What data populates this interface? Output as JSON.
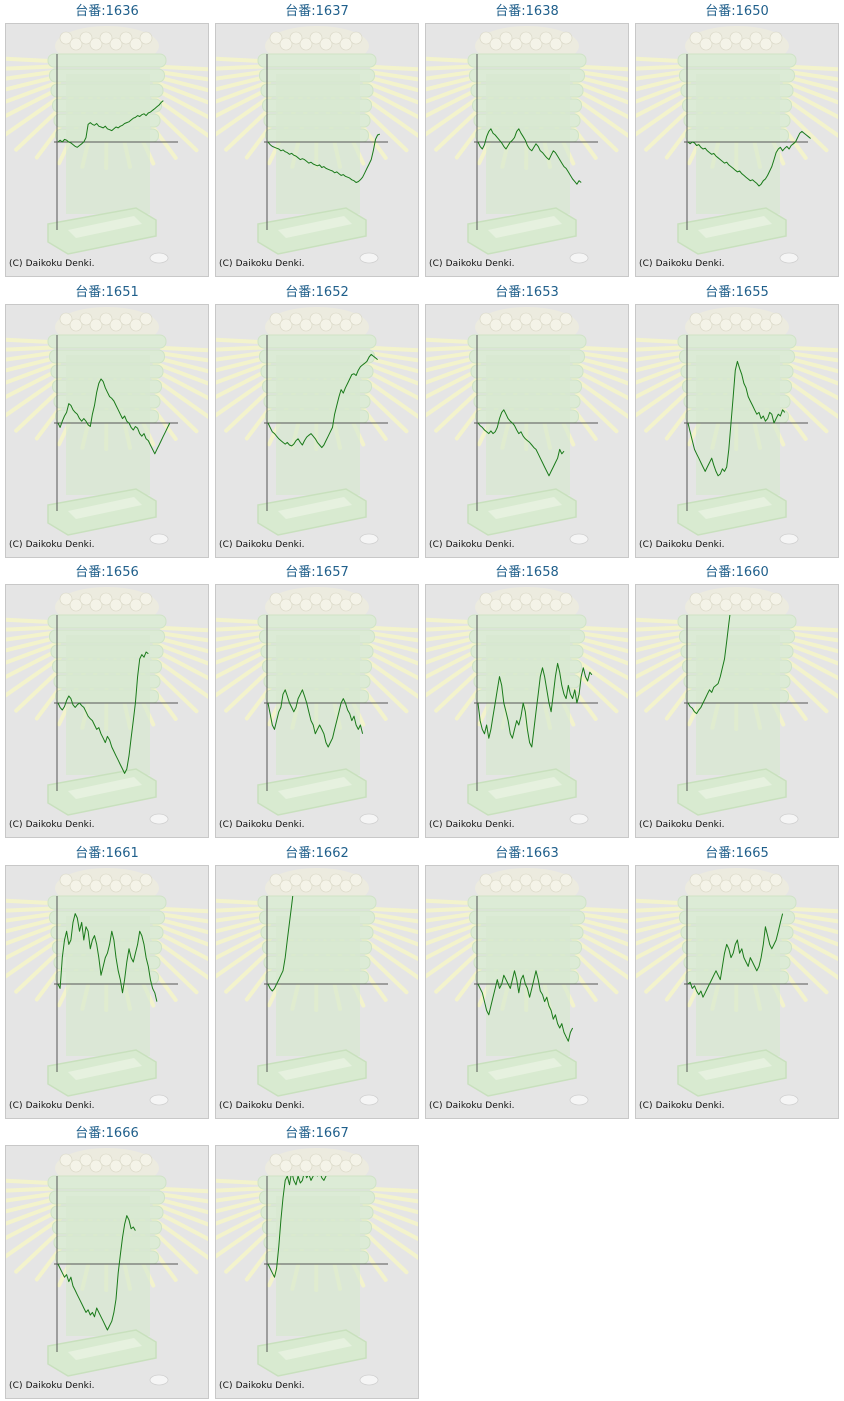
{
  "page": {
    "title_prefix": "台番:",
    "copyright": "(C) Daikoku Denki.",
    "line_color": "#1a7a1a",
    "axis_color": "#555555",
    "background_color": "#e5e5e5",
    "link_color": "#1f5f8b"
  },
  "chart_data": [
    {
      "type": "line",
      "title": "台番:1636",
      "y": [
        0.0,
        0.02,
        0.0,
        0.03,
        0.02,
        0.0,
        -0.01,
        -0.03,
        -0.05,
        -0.06,
        -0.04,
        -0.02,
        0.0,
        0.05,
        0.2,
        0.22,
        0.2,
        0.19,
        0.21,
        0.18,
        0.17,
        0.16,
        0.18,
        0.15,
        0.14,
        0.13,
        0.15,
        0.17,
        0.16,
        0.18,
        0.19,
        0.21,
        0.22,
        0.23,
        0.25,
        0.27,
        0.28,
        0.3,
        0.29,
        0.31,
        0.32,
        0.3,
        0.33,
        0.34,
        0.36,
        0.38,
        0.4,
        0.42,
        0.45,
        0.47
      ]
    },
    {
      "type": "line",
      "title": "台番:1637",
      "y": [
        0.0,
        -0.03,
        -0.05,
        -0.06,
        -0.07,
        -0.08,
        -0.1,
        -0.09,
        -0.11,
        -0.12,
        -0.14,
        -0.13,
        -0.15,
        -0.16,
        -0.18,
        -0.2,
        -0.19,
        -0.2,
        -0.22,
        -0.24,
        -0.23,
        -0.25,
        -0.26,
        -0.27,
        -0.26,
        -0.29,
        -0.28,
        -0.3,
        -0.31,
        -0.32,
        -0.33,
        -0.35,
        -0.34,
        -0.36,
        -0.38,
        -0.37,
        -0.39,
        -0.4,
        -0.41,
        -0.43,
        -0.44,
        -0.46,
        -0.45,
        -0.43,
        -0.4,
        -0.35,
        -0.3,
        -0.25,
        -0.2,
        -0.1,
        0.03,
        0.08,
        0.09
      ]
    },
    {
      "type": "line",
      "title": "台番:1638",
      "y": [
        0.0,
        -0.05,
        -0.08,
        -0.03,
        0.06,
        0.12,
        0.15,
        0.1,
        0.08,
        0.05,
        0.02,
        -0.01,
        -0.05,
        -0.08,
        -0.04,
        0.0,
        0.02,
        0.05,
        0.12,
        0.15,
        0.1,
        0.06,
        0.02,
        -0.04,
        -0.08,
        -0.1,
        -0.06,
        -0.02,
        -0.05,
        -0.1,
        -0.12,
        -0.15,
        -0.18,
        -0.2,
        -0.15,
        -0.1,
        -0.12,
        -0.16,
        -0.2,
        -0.24,
        -0.28,
        -0.3,
        -0.34,
        -0.38,
        -0.42,
        -0.45,
        -0.48,
        -0.44,
        -0.46
      ]
    },
    {
      "type": "line",
      "title": "台番:1650",
      "y": [
        0.0,
        -0.02,
        0.0,
        -0.01,
        -0.04,
        -0.03,
        -0.06,
        -0.08,
        -0.07,
        -0.1,
        -0.12,
        -0.14,
        -0.13,
        -0.16,
        -0.18,
        -0.2,
        -0.22,
        -0.24,
        -0.23,
        -0.26,
        -0.28,
        -0.3,
        -0.32,
        -0.34,
        -0.33,
        -0.36,
        -0.38,
        -0.4,
        -0.42,
        -0.44,
        -0.43,
        -0.45,
        -0.47,
        -0.5,
        -0.48,
        -0.44,
        -0.42,
        -0.38,
        -0.33,
        -0.28,
        -0.2,
        -0.12,
        -0.08,
        -0.06,
        -0.1,
        -0.07,
        -0.05,
        -0.08,
        -0.04,
        -0.02,
        0.0,
        0.05,
        0.1,
        0.12,
        0.1,
        0.08,
        0.06,
        0.04
      ]
    },
    {
      "type": "line",
      "title": "台番:1651",
      "y": [
        0.0,
        -0.05,
        0.02,
        0.08,
        0.12,
        0.22,
        0.2,
        0.15,
        0.12,
        0.1,
        0.05,
        0.02,
        0.05,
        0.02,
        -0.02,
        -0.04,
        0.1,
        0.2,
        0.35,
        0.45,
        0.5,
        0.47,
        0.4,
        0.35,
        0.3,
        0.28,
        0.25,
        0.2,
        0.15,
        0.1,
        0.05,
        0.08,
        0.02,
        0.0,
        -0.05,
        -0.08,
        -0.04,
        -0.06,
        -0.12,
        -0.15,
        -0.12,
        -0.18,
        -0.2,
        -0.25,
        -0.3,
        -0.35,
        -0.3,
        -0.25,
        -0.2,
        -0.15,
        -0.1,
        -0.05,
        0.0
      ]
    },
    {
      "type": "line",
      "title": "台番:1652",
      "y": [
        0.0,
        -0.05,
        -0.1,
        -0.12,
        -0.15,
        -0.18,
        -0.2,
        -0.22,
        -0.24,
        -0.22,
        -0.25,
        -0.26,
        -0.24,
        -0.2,
        -0.18,
        -0.22,
        -0.25,
        -0.2,
        -0.16,
        -0.14,
        -0.12,
        -0.15,
        -0.18,
        -0.22,
        -0.25,
        -0.28,
        -0.25,
        -0.2,
        -0.15,
        -0.1,
        -0.05,
        0.1,
        0.2,
        0.3,
        0.38,
        0.34,
        0.4,
        0.45,
        0.5,
        0.55,
        0.56,
        0.54,
        0.6,
        0.64,
        0.66,
        0.68,
        0.7,
        0.75,
        0.78,
        0.76,
        0.74,
        0.72
      ]
    },
    {
      "type": "line",
      "title": "台番:1653",
      "y": [
        0.0,
        -0.03,
        -0.05,
        -0.08,
        -0.1,
        -0.12,
        -0.09,
        -0.12,
        -0.1,
        -0.05,
        0.05,
        0.12,
        0.15,
        0.1,
        0.05,
        0.02,
        0.0,
        -0.03,
        -0.08,
        -0.12,
        -0.1,
        -0.15,
        -0.18,
        -0.2,
        -0.22,
        -0.25,
        -0.28,
        -0.3,
        -0.35,
        -0.4,
        -0.45,
        -0.5,
        -0.55,
        -0.6,
        -0.55,
        -0.5,
        -0.45,
        -0.4,
        -0.3,
        -0.35,
        -0.32
      ]
    },
    {
      "type": "line",
      "title": "台番:1655",
      "y": [
        0.0,
        -0.1,
        -0.2,
        -0.3,
        -0.35,
        -0.4,
        -0.45,
        -0.5,
        -0.55,
        -0.5,
        -0.45,
        -0.4,
        -0.48,
        -0.55,
        -0.6,
        -0.58,
        -0.52,
        -0.55,
        -0.5,
        -0.3,
        0.0,
        0.3,
        0.6,
        0.7,
        0.62,
        0.55,
        0.45,
        0.4,
        0.3,
        0.25,
        0.2,
        0.15,
        0.1,
        0.12,
        0.05,
        0.08,
        0.02,
        0.05,
        0.12,
        0.1,
        0.0,
        0.05,
        0.1,
        0.08,
        0.15,
        0.12
      ]
    },
    {
      "type": "line",
      "title": "台番:1656",
      "y": [
        0.0,
        -0.05,
        -0.08,
        -0.04,
        0.03,
        0.08,
        0.05,
        -0.02,
        -0.05,
        -0.02,
        0.0,
        -0.03,
        -0.05,
        -0.1,
        -0.15,
        -0.18,
        -0.2,
        -0.25,
        -0.3,
        -0.28,
        -0.35,
        -0.4,
        -0.45,
        -0.38,
        -0.42,
        -0.5,
        -0.55,
        -0.6,
        -0.65,
        -0.7,
        -0.75,
        -0.8,
        -0.75,
        -0.6,
        -0.4,
        -0.2,
        0.0,
        0.3,
        0.5,
        0.55,
        0.52,
        0.58,
        0.56
      ]
    },
    {
      "type": "line",
      "title": "台番:1657",
      "y": [
        0.0,
        -0.12,
        -0.25,
        -0.3,
        -0.2,
        -0.1,
        -0.05,
        0.1,
        0.15,
        0.08,
        0.0,
        -0.05,
        -0.1,
        -0.05,
        0.05,
        0.1,
        0.15,
        0.08,
        0.0,
        -0.1,
        -0.2,
        -0.25,
        -0.35,
        -0.3,
        -0.25,
        -0.3,
        -0.35,
        -0.45,
        -0.5,
        -0.45,
        -0.4,
        -0.3,
        -0.2,
        -0.1,
        0.0,
        0.05,
        0.0,
        -0.08,
        -0.12,
        -0.2,
        -0.15,
        -0.25,
        -0.3,
        -0.25,
        -0.35
      ]
    },
    {
      "type": "line",
      "title": "台番:1658",
      "y": [
        0.0,
        -0.2,
        -0.3,
        -0.35,
        -0.25,
        -0.4,
        -0.3,
        -0.15,
        0.0,
        0.15,
        0.3,
        0.2,
        0.0,
        -0.1,
        -0.2,
        -0.35,
        -0.4,
        -0.3,
        -0.2,
        -0.25,
        -0.15,
        0.0,
        -0.1,
        -0.3,
        -0.45,
        -0.5,
        -0.3,
        -0.1,
        0.1,
        0.3,
        0.4,
        0.3,
        0.15,
        0.0,
        -0.1,
        0.1,
        0.3,
        0.45,
        0.35,
        0.2,
        0.1,
        0.05,
        0.2,
        0.1,
        0.05,
        0.15,
        0.0,
        0.1,
        0.3,
        0.4,
        0.3,
        0.25,
        0.35,
        0.32
      ]
    },
    {
      "type": "line",
      "title": "台番:1660",
      "y": [
        0.0,
        -0.04,
        -0.06,
        -0.1,
        -0.12,
        -0.08,
        -0.05,
        0.0,
        0.05,
        0.1,
        0.15,
        0.12,
        0.18,
        0.2,
        0.22,
        0.3,
        0.4,
        0.5,
        0.7,
        0.9,
        1.1
      ]
    },
    {
      "type": "line",
      "title": "台番:1661",
      "y": [
        0.0,
        -0.05,
        0.3,
        0.5,
        0.6,
        0.45,
        0.5,
        0.7,
        0.8,
        0.75,
        0.6,
        0.7,
        0.5,
        0.65,
        0.6,
        0.4,
        0.5,
        0.55,
        0.45,
        0.3,
        0.1,
        0.2,
        0.3,
        0.35,
        0.45,
        0.6,
        0.5,
        0.3,
        0.15,
        0.05,
        -0.1,
        0.05,
        0.25,
        0.4,
        0.3,
        0.25,
        0.35,
        0.45,
        0.6,
        0.55,
        0.45,
        0.3,
        0.2,
        0.05,
        -0.05,
        -0.1,
        -0.2
      ]
    },
    {
      "type": "line",
      "title": "台番:1662",
      "y": [
        0.0,
        -0.05,
        -0.08,
        -0.05,
        0.0,
        0.05,
        0.1,
        0.15,
        0.3,
        0.5,
        0.7,
        0.9,
        1.1
      ]
    },
    {
      "type": "line",
      "title": "台番:1663",
      "y": [
        0.0,
        -0.05,
        -0.1,
        -0.2,
        -0.3,
        -0.35,
        -0.25,
        -0.15,
        -0.05,
        0.05,
        -0.05,
        0.0,
        0.1,
        0.05,
        0.0,
        -0.05,
        0.05,
        0.15,
        0.05,
        -0.1,
        0.05,
        0.1,
        0.0,
        -0.05,
        -0.15,
        -0.05,
        0.05,
        0.15,
        0.05,
        -0.08,
        -0.12,
        -0.2,
        -0.15,
        -0.25,
        -0.3,
        -0.4,
        -0.35,
        -0.45,
        -0.5,
        -0.45,
        -0.55,
        -0.6,
        -0.65,
        -0.55,
        -0.5
      ]
    },
    {
      "type": "line",
      "title": "台番:1665",
      "y": [
        0.0,
        0.02,
        -0.05,
        -0.02,
        -0.08,
        -0.12,
        -0.08,
        -0.15,
        -0.1,
        -0.05,
        0.0,
        0.05,
        0.1,
        0.15,
        0.1,
        0.05,
        0.2,
        0.35,
        0.45,
        0.4,
        0.3,
        0.35,
        0.45,
        0.5,
        0.35,
        0.4,
        0.3,
        0.25,
        0.2,
        0.3,
        0.25,
        0.2,
        0.15,
        0.2,
        0.3,
        0.45,
        0.65,
        0.55,
        0.45,
        0.4,
        0.45,
        0.5,
        0.6,
        0.7,
        0.8
      ]
    },
    {
      "type": "line",
      "title": "台番:1666",
      "y": [
        0.0,
        -0.05,
        -0.1,
        -0.15,
        -0.12,
        -0.2,
        -0.15,
        -0.25,
        -0.3,
        -0.35,
        -0.4,
        -0.45,
        -0.5,
        -0.55,
        -0.52,
        -0.58,
        -0.55,
        -0.6,
        -0.5,
        -0.55,
        -0.6,
        -0.65,
        -0.7,
        -0.75,
        -0.7,
        -0.65,
        -0.55,
        -0.4,
        -0.1,
        0.1,
        0.3,
        0.45,
        0.55,
        0.5,
        0.4,
        0.42,
        0.38
      ]
    },
    {
      "type": "line",
      "title": "台番:1667",
      "y": [
        0.0,
        -0.05,
        -0.1,
        -0.15,
        -0.05,
        0.2,
        0.5,
        0.75,
        0.95,
        1.0,
        0.9,
        1.05,
        0.95,
        0.9,
        1.0,
        0.92,
        0.95,
        1.05,
        0.98,
        1.02,
        0.95,
        1.0,
        1.08,
        1.0,
        1.05,
        0.98,
        0.95,
        1.0,
        1.05,
        1.08,
        1.1
      ]
    }
  ]
}
